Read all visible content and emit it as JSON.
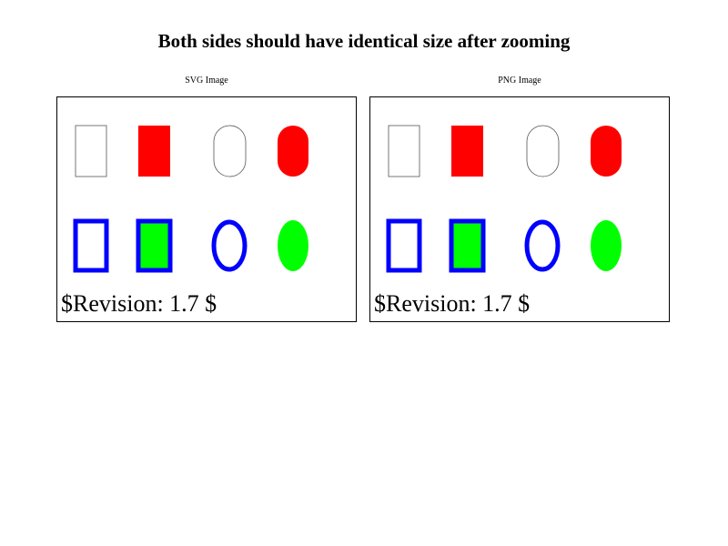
{
  "title": "Both sides should have identical size after zooming",
  "colors": {
    "red": "#ff0000",
    "green": "#00ff00",
    "blue": "#0000ff",
    "outline": "#000000"
  },
  "panels": [
    {
      "label": "SVG Image",
      "revision": "$Revision: 1.7 $"
    },
    {
      "label": "PNG Image",
      "revision": "$Revision: 1.7 $"
    }
  ]
}
